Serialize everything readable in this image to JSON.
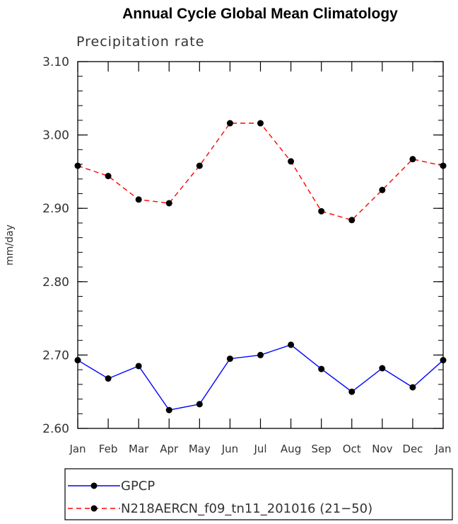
{
  "chart_data": {
    "type": "line",
    "title": "Annual Cycle Global Mean Climatology",
    "subtitle": "Precipitation rate",
    "ylabel": "mm/day",
    "xlabel": "",
    "ylim": [
      2.6,
      3.1
    ],
    "ytick_values": [
      2.6,
      2.7,
      2.8,
      2.9,
      3.0,
      3.1
    ],
    "ytick_labels": [
      "2.60",
      "2.70",
      "2.80",
      "2.90",
      "3.00",
      "3.10"
    ],
    "categories": [
      "Jan",
      "Feb",
      "Mar",
      "Apr",
      "May",
      "Jun",
      "Jul",
      "Aug",
      "Sep",
      "Oct",
      "Nov",
      "Dec",
      "Jan"
    ],
    "series": [
      {
        "name": "GPCP",
        "color": "#0000ff",
        "dashed": false,
        "values": [
          2.693,
          2.668,
          2.685,
          2.625,
          2.633,
          2.695,
          2.7,
          2.714,
          2.681,
          2.65,
          2.682,
          2.656,
          2.693
        ]
      },
      {
        "name": "N218AERCN_f09_tn11_201016 (21−50)",
        "color": "#ff0000",
        "dashed": true,
        "values": [
          2.958,
          2.944,
          2.912,
          2.907,
          2.958,
          3.016,
          3.016,
          2.964,
          2.896,
          2.884,
          2.925,
          2.967,
          2.958
        ]
      }
    ],
    "legend_position": "bottom"
  }
}
